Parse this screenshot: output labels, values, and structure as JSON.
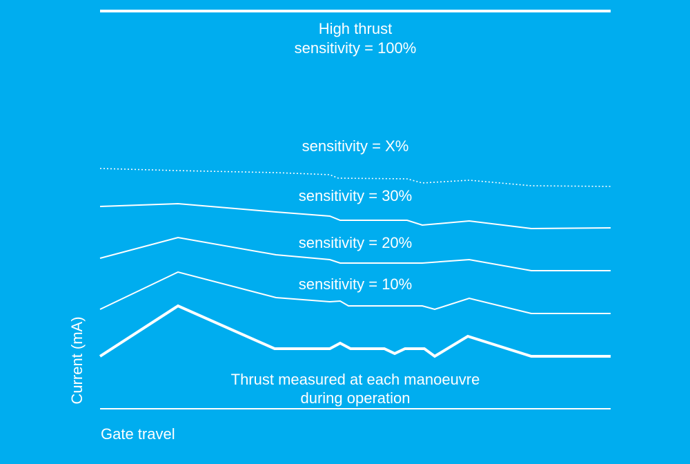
{
  "background_color": "#00adef",
  "foreground_color": "#ffffff",
  "labels": {
    "high_thrust_title": "High thrust",
    "high_thrust_sensitivity": "sensitivity = 100%",
    "sensitivity_x": "sensitivity = X%",
    "sensitivity_30": "sensitivity = 30%",
    "sensitivity_20": "sensitivity = 20%",
    "sensitivity_10": "sensitivity = 10%",
    "measured_line1": "Thrust measured at each manoeuvre",
    "measured_line2": "during operation",
    "y_axis": "Current (mA)",
    "x_axis": "Gate travel"
  }
}
